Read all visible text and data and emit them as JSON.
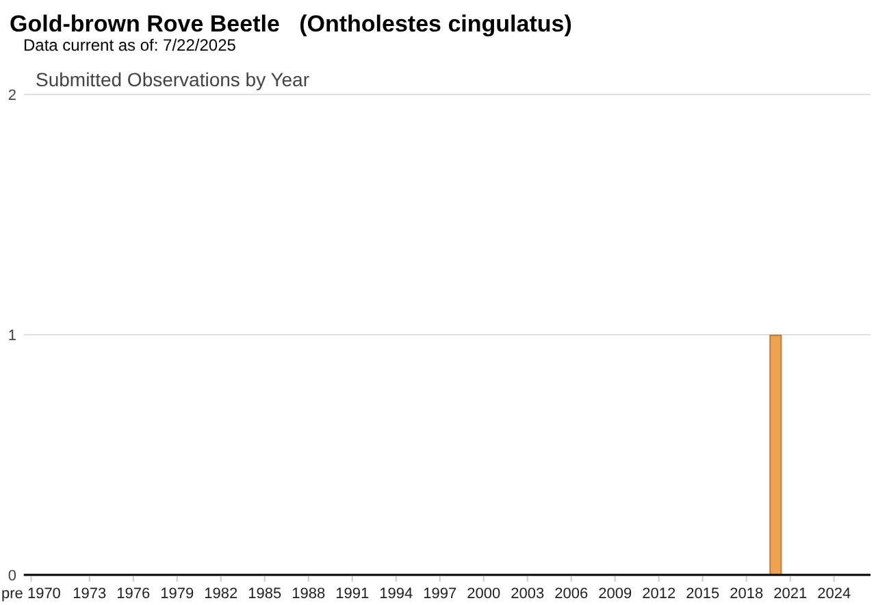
{
  "chart_data": {
    "type": "bar",
    "title": "Gold-brown Rove Beetle   (Ontholestes cingulatus)",
    "subtitle": "Data current as of: 7/22/2025",
    "annotations": [
      "Submitted Observations by Year"
    ],
    "categories": [
      "pre 1970",
      null,
      null,
      null,
      "1973",
      null,
      null,
      "1976",
      null,
      null,
      "1979",
      null,
      null,
      "1982",
      null,
      null,
      "1985",
      null,
      null,
      "1988",
      null,
      null,
      "1991",
      null,
      null,
      "1994",
      null,
      null,
      "1997",
      null,
      null,
      "2000",
      null,
      null,
      "2003",
      null,
      null,
      "2006",
      null,
      null,
      "2009",
      null,
      null,
      "2012",
      null,
      null,
      "2015",
      null,
      null,
      "2018",
      null,
      null,
      "2021",
      null,
      null,
      "2024",
      null,
      null
    ],
    "values": [
      0,
      0,
      0,
      0,
      0,
      0,
      0,
      0,
      0,
      0,
      0,
      0,
      0,
      0,
      0,
      0,
      0,
      0,
      0,
      0,
      0,
      0,
      0,
      0,
      0,
      0,
      0,
      0,
      0,
      0,
      0,
      0,
      0,
      0,
      0,
      0,
      0,
      0,
      0,
      0,
      0,
      0,
      0,
      0,
      0,
      0,
      0,
      0,
      0,
      0,
      0,
      1,
      0,
      0,
      0,
      0,
      0,
      0
    ],
    "color": "#eea352",
    "ylim": [
      0,
      2
    ],
    "yticks": [
      0,
      1,
      2
    ],
    "grid": "y"
  }
}
